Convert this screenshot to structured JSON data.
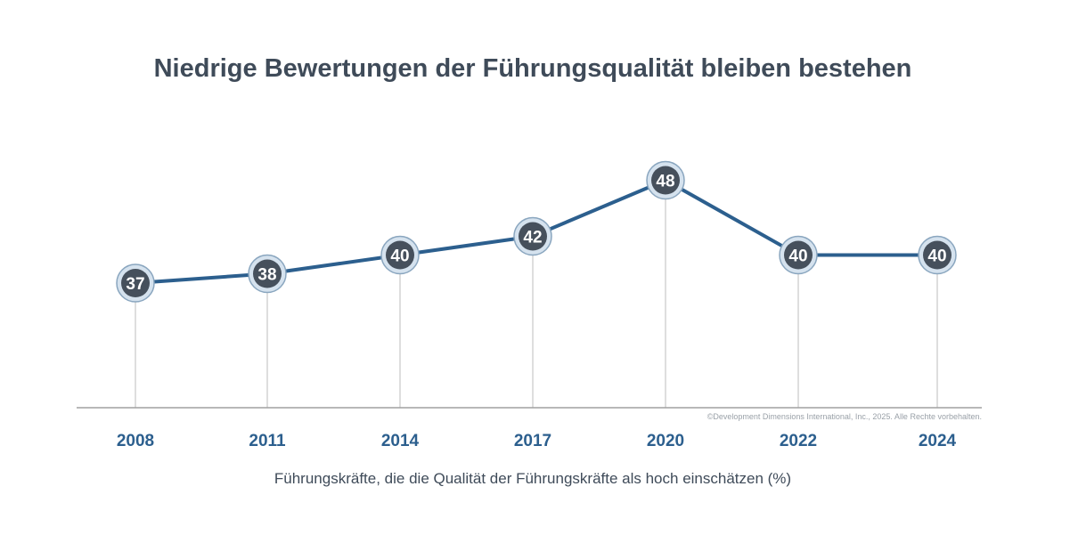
{
  "chart_data": {
    "type": "line",
    "title": "Niedrige Bewertungen der Führungsqualität bleiben bestehen",
    "categories": [
      "2008",
      "2011",
      "2014",
      "2017",
      "2020",
      "2022",
      "2024"
    ],
    "values": [
      37,
      38,
      40,
      42,
      48,
      40,
      40
    ],
    "xlabel": "Führungskräfte, die die Qualität der Führungskräfte als hoch einschätzen (%)",
    "ylabel": "",
    "grid": false,
    "colors": {
      "line": "#2c5f8e",
      "marker_fill": "#46505c",
      "marker_ring": "#d5e2ee",
      "marker_ring_stroke": "#8aa6bf",
      "drop_line": "#c8c8c8",
      "baseline": "#a0a0a0",
      "year_text": "#2c5f8e",
      "title_text": "#3f4b59"
    }
  },
  "footer": {
    "copyright": "©Development Dimensions International, Inc., 2025. Alle Rechte vorbehalten."
  }
}
